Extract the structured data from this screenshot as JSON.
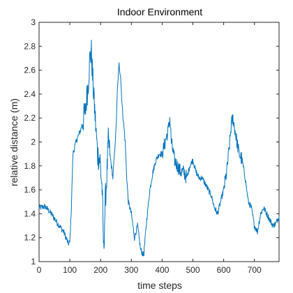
{
  "chart_data": {
    "type": "line",
    "title": "Indoor Environment",
    "xlabel": "time steps",
    "ylabel": "relative distance (m)",
    "xlim": [
      0,
      780
    ],
    "ylim": [
      1,
      3
    ],
    "xticks": [
      0,
      100,
      200,
      300,
      400,
      500,
      600,
      700
    ],
    "yticks": [
      1,
      1.2,
      1.4,
      1.6,
      1.8,
      2,
      2.2,
      2.4,
      2.6,
      2.8,
      3
    ],
    "xtick_labels": [
      "0",
      "100",
      "200",
      "300",
      "400",
      "500",
      "600",
      "700"
    ],
    "ytick_labels": [
      "1",
      "1.2",
      "1.4",
      "1.6",
      "1.8",
      "2",
      "2.2",
      "2.4",
      "2.6",
      "2.8",
      "3"
    ],
    "grid": false,
    "line_color": "#0072BD",
    "series": [
      {
        "x": [
          0,
          20,
          40,
          60,
          80,
          95,
          100,
          105,
          110,
          120,
          135,
          150,
          160,
          165,
          170,
          175,
          180,
          185,
          190,
          198,
          205,
          210,
          215,
          220,
          225,
          230,
          240,
          250,
          255,
          260,
          265,
          270,
          280,
          285,
          290,
          300,
          310,
          320,
          330,
          340,
          345,
          350,
          360,
          370,
          380,
          390,
          400,
          410,
          420,
          425,
          430,
          440,
          450,
          460,
          470,
          480,
          490,
          500,
          510,
          520,
          530,
          540,
          550,
          560,
          570,
          580,
          590,
          600,
          610,
          620,
          625,
          630,
          640,
          650,
          660,
          670,
          680,
          690,
          700,
          710,
          720,
          730,
          740,
          750,
          760,
          770,
          780
        ],
        "y": [
          1.45,
          1.46,
          1.4,
          1.32,
          1.25,
          1.15,
          1.16,
          1.45,
          1.9,
          2.0,
          2.1,
          2.25,
          2.5,
          2.7,
          2.75,
          2.5,
          2.3,
          2.1,
          1.9,
          1.85,
          1.6,
          1.08,
          1.5,
          1.7,
          2.0,
          1.9,
          1.7,
          2.1,
          2.45,
          2.65,
          2.55,
          2.3,
          2.0,
          1.7,
          1.5,
          1.4,
          1.2,
          1.3,
          1.1,
          1.05,
          1.2,
          1.35,
          1.6,
          1.75,
          1.85,
          1.9,
          1.9,
          2.0,
          2.1,
          2.2,
          2.0,
          1.85,
          1.8,
          1.75,
          1.75,
          1.7,
          1.8,
          1.85,
          1.75,
          1.7,
          1.7,
          1.65,
          1.6,
          1.55,
          1.45,
          1.4,
          1.5,
          1.6,
          1.75,
          2.0,
          2.15,
          2.2,
          2.05,
          1.9,
          1.85,
          1.7,
          1.5,
          1.45,
          1.3,
          1.25,
          1.4,
          1.45,
          1.4,
          1.35,
          1.3,
          1.32,
          1.38
        ]
      }
    ]
  }
}
